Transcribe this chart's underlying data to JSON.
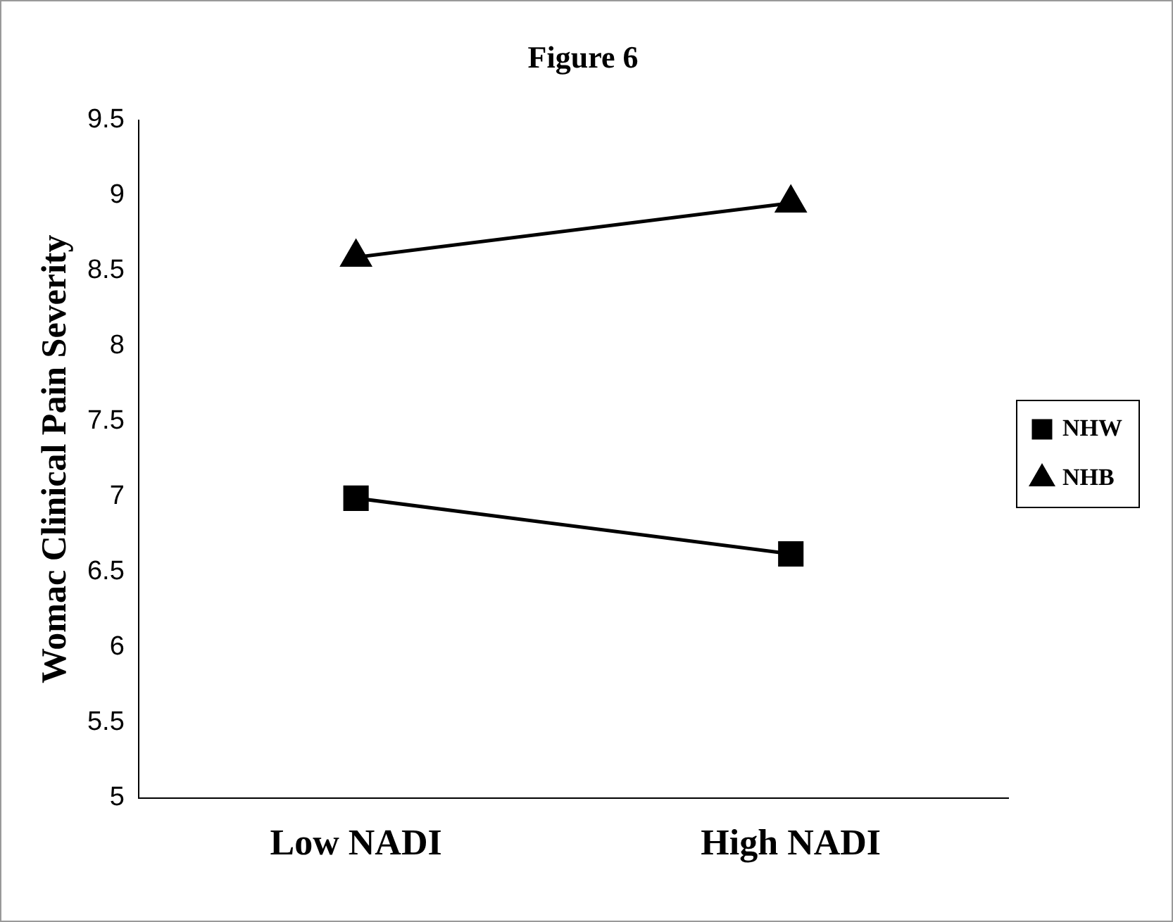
{
  "chart_data": {
    "type": "line",
    "title": "Figure 6",
    "ylabel": "Womac Clinical Pain Severity",
    "categories": [
      "Low NADI",
      "High NADI"
    ],
    "series": [
      {
        "name": "NHW",
        "color": "#000000",
        "marker": "square",
        "values": [
          6.99,
          6.62
        ]
      },
      {
        "name": "NHB",
        "color": "#000000",
        "marker": "triangle",
        "values": [
          8.59,
          8.95
        ]
      }
    ],
    "ylim": [
      5,
      9.5
    ],
    "yticks": [
      5,
      5.5,
      6,
      6.5,
      7,
      7.5,
      8,
      8.5,
      9,
      9.5
    ],
    "grid": false,
    "legend": "right"
  }
}
